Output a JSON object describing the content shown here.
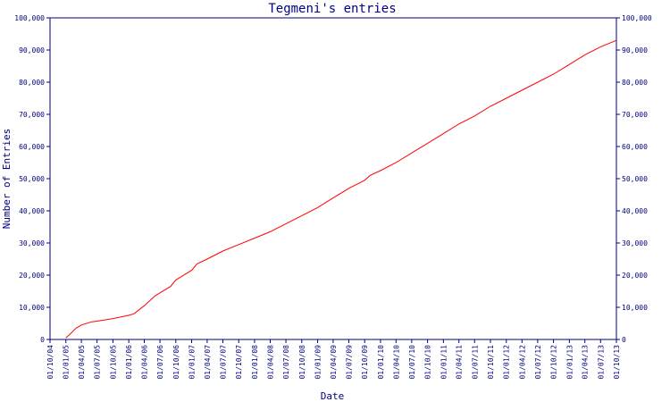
{
  "chart_data": {
    "type": "line",
    "title": "Tegmeni's entries",
    "xlabel": "Date",
    "ylabel": "Number of Entries",
    "ylim": [
      0,
      100000
    ],
    "yticks": [
      "0",
      "10,000",
      "20,000",
      "30,000",
      "40,000",
      "50,000",
      "60,000",
      "70,000",
      "80,000",
      "90,000",
      "100,000"
    ],
    "xticks": [
      "01/10/04",
      "01/01/05",
      "01/04/05",
      "01/07/05",
      "01/10/05",
      "01/01/06",
      "01/04/06",
      "01/07/06",
      "01/10/06",
      "01/01/07",
      "01/04/07",
      "01/07/07",
      "01/10/07",
      "01/01/08",
      "01/04/08",
      "01/07/08",
      "01/10/08",
      "01/01/09",
      "01/04/09",
      "01/07/09",
      "01/10/09",
      "01/01/10",
      "01/04/10",
      "01/07/10",
      "01/10/10",
      "01/01/11",
      "01/04/11",
      "01/07/11",
      "01/10/11",
      "01/01/12",
      "01/04/12",
      "01/07/12",
      "01/10/12",
      "01/01/13",
      "01/04/13",
      "01/07/13",
      "01/10/13"
    ],
    "grid": false,
    "series": [
      {
        "color": "#ff0000",
        "points": [
          [
            "01/01/05",
            500
          ],
          [
            "01/02/05",
            2000
          ],
          [
            "01/03/05",
            3500
          ],
          [
            "01/04/05",
            4500
          ],
          [
            "01/06/05",
            5500
          ],
          [
            "01/07/05",
            5700
          ],
          [
            "01/10/05",
            6500
          ],
          [
            "01/01/06",
            7500
          ],
          [
            "01/02/06",
            8000
          ],
          [
            "01/04/06",
            10500
          ],
          [
            "01/06/06",
            13500
          ],
          [
            "01/07/06",
            14500
          ],
          [
            "01/09/06",
            16500
          ],
          [
            "01/10/06",
            18500
          ],
          [
            "01/12/06",
            20500
          ],
          [
            "01/01/07",
            21500
          ],
          [
            "01/02/07",
            23500
          ],
          [
            "01/04/07",
            25000
          ],
          [
            "01/07/07",
            27500
          ],
          [
            "01/10/07",
            29500
          ],
          [
            "01/01/08",
            31500
          ],
          [
            "01/04/08",
            33500
          ],
          [
            "01/07/08",
            36000
          ],
          [
            "01/10/08",
            38500
          ],
          [
            "01/01/09",
            41000
          ],
          [
            "01/04/09",
            44000
          ],
          [
            "01/07/09",
            47000
          ],
          [
            "01/10/09",
            49500
          ],
          [
            "01/11/09",
            51000
          ],
          [
            "01/01/10",
            52500
          ],
          [
            "01/04/10",
            55000
          ],
          [
            "01/07/10",
            58000
          ],
          [
            "01/10/10",
            61000
          ],
          [
            "01/01/11",
            64000
          ],
          [
            "01/04/11",
            67000
          ],
          [
            "01/07/11",
            69500
          ],
          [
            "01/10/11",
            72500
          ],
          [
            "01/01/12",
            75000
          ],
          [
            "01/04/12",
            77500
          ],
          [
            "01/07/12",
            80000
          ],
          [
            "01/10/12",
            82500
          ],
          [
            "01/01/13",
            85500
          ],
          [
            "01/04/13",
            88500
          ],
          [
            "01/07/13",
            91000
          ],
          [
            "01/10/13",
            93000
          ]
        ]
      }
    ]
  },
  "colors": {
    "axis": "#000080",
    "line": "#ff0000",
    "background": "#ffffff"
  }
}
